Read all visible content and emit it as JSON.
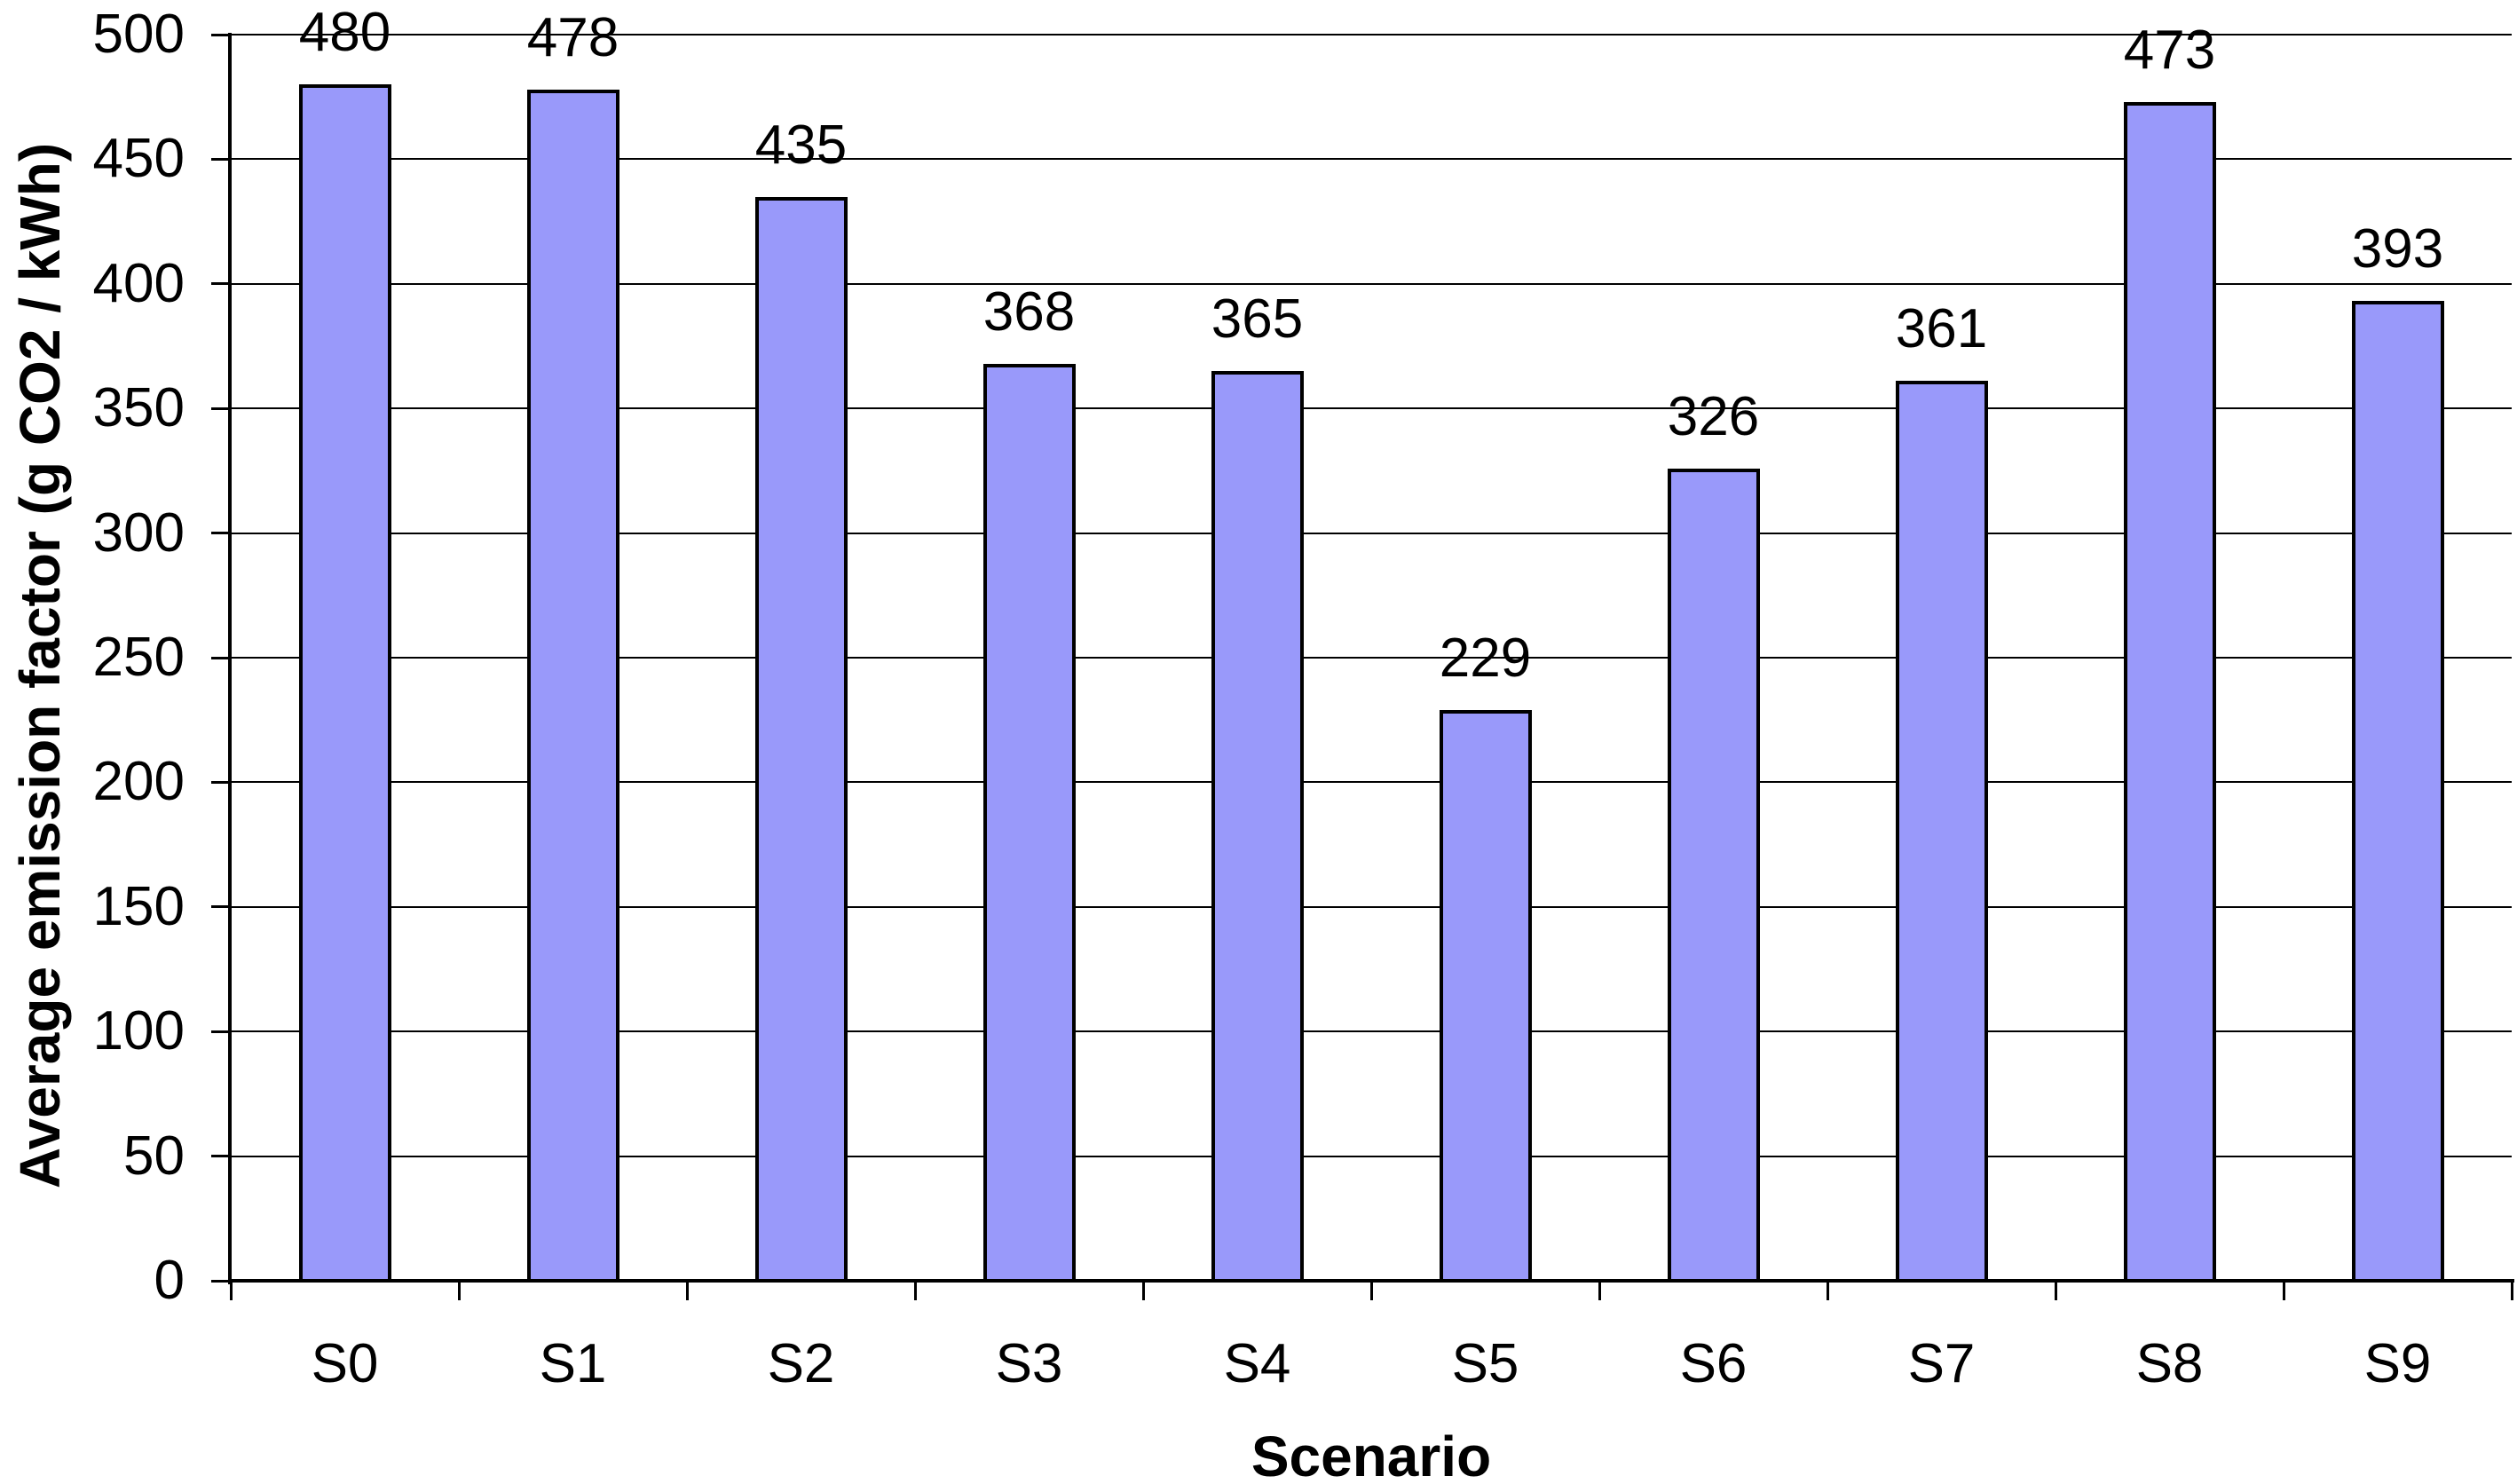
{
  "chart_data": {
    "type": "bar",
    "categories": [
      "S0",
      "S1",
      "S2",
      "S3",
      "S4",
      "S5",
      "S6",
      "S7",
      "S8",
      "S9"
    ],
    "values": [
      480,
      478,
      435,
      368,
      365,
      229,
      326,
      361,
      473,
      393
    ],
    "title": "",
    "xlabel": "Scenario",
    "ylabel": "Average emission factor (g CO2 / kWh)",
    "ylim": [
      0,
      500
    ],
    "ytick_step": 50,
    "ytick_labels": [
      "0",
      "50",
      "100",
      "150",
      "200",
      "250",
      "300",
      "350",
      "400",
      "450",
      "500"
    ],
    "grid": true,
    "data_labels": true,
    "legend_position": "none",
    "colors": {
      "bar_fill": "#9999FA",
      "bar_border": "#000000",
      "axis": "#000000",
      "gridline": "#000000",
      "background": "#FFFFFF",
      "text": "#000000"
    }
  }
}
